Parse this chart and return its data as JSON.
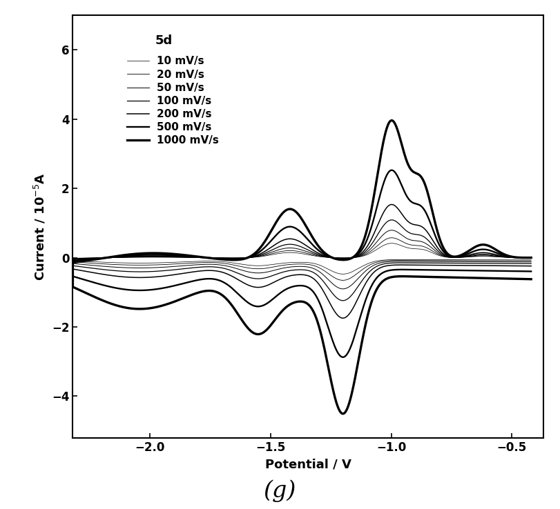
{
  "title": "5d",
  "xlabel": "Potential / V",
  "ylabel": "Current / 10$^{-5}$A",
  "xlim": [
    -2.32,
    -0.37
  ],
  "ylim": [
    -5.2,
    7.0
  ],
  "xticks": [
    -2.0,
    -1.5,
    -1.0,
    -0.5
  ],
  "yticks": [
    -4,
    -2,
    0,
    2,
    4,
    6
  ],
  "scan_rates": [
    "10 mV/s",
    "20 mV/s",
    "50 mV/s",
    "100 mV/s",
    "200 mV/s",
    "500 mV/s",
    "1000 mV/s"
  ],
  "line_widths": [
    0.5,
    0.6,
    0.7,
    0.9,
    1.1,
    1.7,
    2.4
  ],
  "scales": [
    0.42,
    0.58,
    0.8,
    1.1,
    1.55,
    2.55,
    4.0
  ],
  "figure_label": "(g)",
  "background_color": "#ffffff"
}
